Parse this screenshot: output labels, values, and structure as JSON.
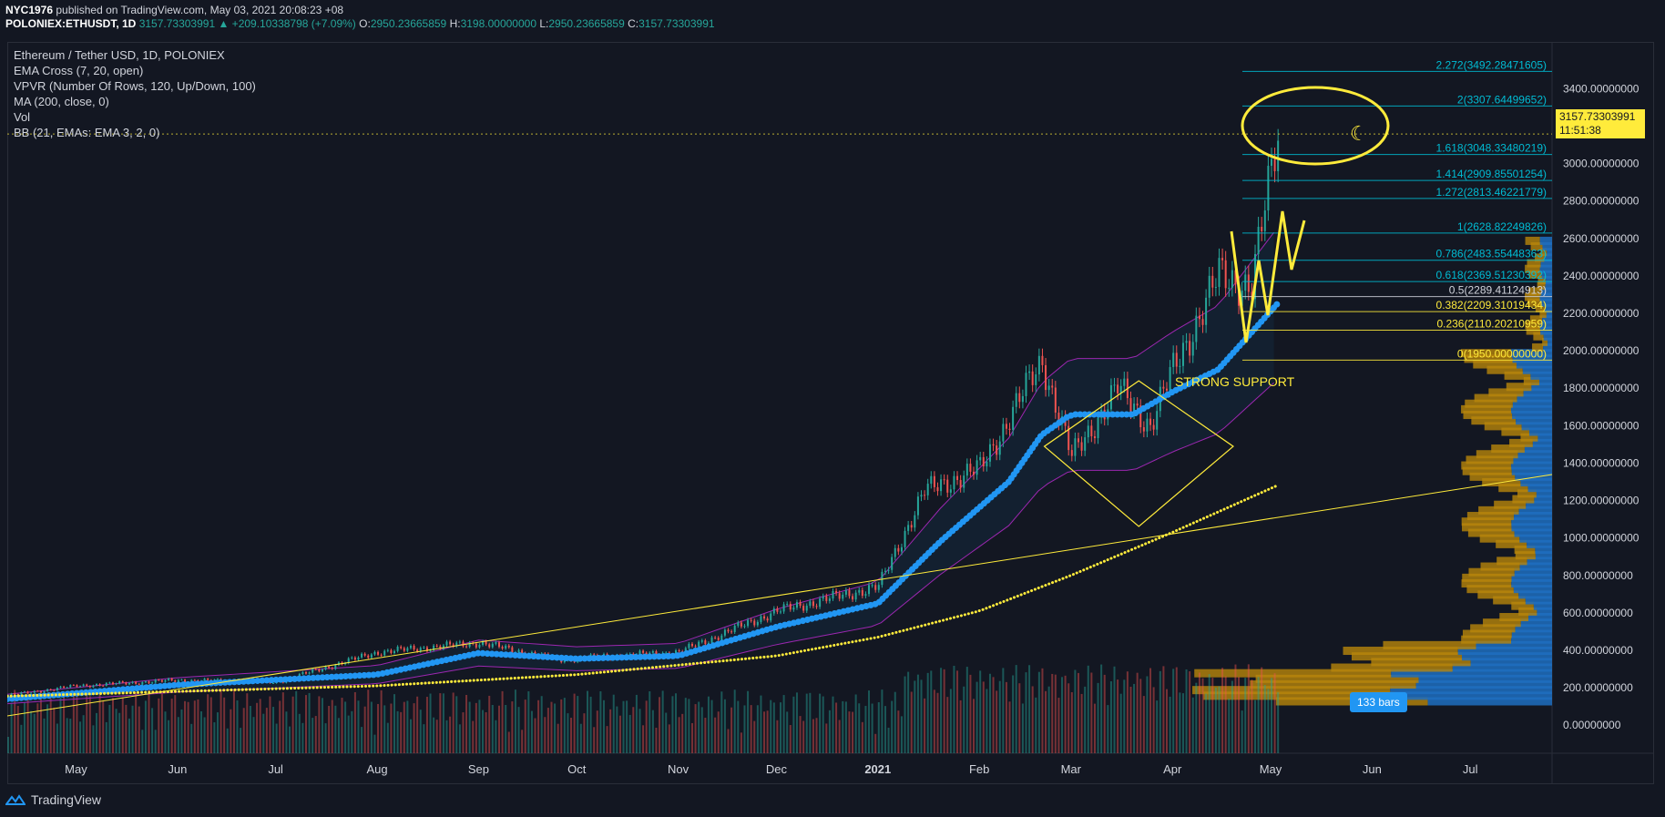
{
  "header": {
    "author": "NYC1976",
    "published_text": "published on TradingView.com, May 03, 2021 20:08:23 +08",
    "symbol": "POLONIEX:ETHUSDT, 1D",
    "price": "3157.73303991",
    "change": "▲ +209.10338798 (+7.09%)",
    "open_label": "O:",
    "open": "2950.23665859",
    "high_label": "H:",
    "high": "3198.00000000",
    "low_label": "L:",
    "low": "2950.23665859",
    "close_label": "C:",
    "close": "3157.73303991"
  },
  "legend": [
    "Ethereum / Tether USD, 1D, POLONIEX",
    "EMA Cross (7, 20, open)",
    "VPVR (Number Of Rows, 120, Up/Down, 100)",
    "MA (200, close, 0)",
    "Vol",
    "BB (21, EMAs: EMA 3, 2, 0)"
  ],
  "price_tag": {
    "price": "3157.73303991",
    "countdown": "11:51:38"
  },
  "bars_badge": "133 bars",
  "annotation_text": "STRONG SUPPORT",
  "footer": {
    "brand": "TradingView"
  },
  "colors": {
    "background": "#131722",
    "up": "#26a69a",
    "down": "#ef5350",
    "ma200": "#ffeb3b",
    "bb_basis": "#2196f3",
    "bb_band": "#9c27b0",
    "fib_line": "#00bcd4",
    "drawing": "#ffeb3b"
  },
  "chart_data": {
    "type": "line",
    "symbol": "POLONIEX:ETHUSDT",
    "ylim": [
      -150,
      3650
    ],
    "y_ticks": [
      0,
      200,
      400,
      600,
      800,
      1000,
      1200,
      1400,
      1600,
      1800,
      2000,
      2200,
      2400,
      2600,
      2800,
      3000,
      3200,
      3400
    ],
    "y_tick_labels": [
      "0.00000000",
      "200.00000000",
      "400.00000000",
      "600.00000000",
      "800.00000000",
      "1000.00000000",
      "1200.00000000",
      "1400.00000000",
      "1600.00000000",
      "1800.00000000",
      "2000.00000000",
      "2200.00000000",
      "2400.00000000",
      "2600.00000000",
      "2800.00000000",
      "3000.00000000",
      "3200.00000000",
      "3400.00000000"
    ],
    "x_tick_labels": [
      "May",
      "Jun",
      "Jul",
      "Aug",
      "Sep",
      "Oct",
      "Nov",
      "Dec",
      "2021",
      "Feb",
      "Mar",
      "Apr",
      "May",
      "Jun",
      "Jul"
    ],
    "x_tick_dates": [
      "2020-05-01",
      "2020-06-01",
      "2020-07-01",
      "2020-08-01",
      "2020-09-01",
      "2020-10-01",
      "2020-11-01",
      "2020-12-01",
      "2021-01-01",
      "2021-02-01",
      "2021-03-01",
      "2021-04-01",
      "2021-05-01",
      "2021-06-01",
      "2021-07-01"
    ],
    "x_start": "2020-04-10",
    "x_end": "2021-07-26",
    "series": [
      {
        "name": "ETHUSDT",
        "dates": [
          "2020-04-10",
          "2020-05-01",
          "2020-06-01",
          "2020-07-01",
          "2020-08-01",
          "2020-09-01",
          "2020-09-25",
          "2020-11-01",
          "2020-12-01",
          "2021-01-01",
          "2021-01-15",
          "2021-02-01",
          "2021-02-20",
          "2021-03-01",
          "2021-03-15",
          "2021-03-25",
          "2021-04-01",
          "2021-04-15",
          "2021-04-25",
          "2021-05-03"
        ],
        "values": [
          160,
          210,
          240,
          230,
          390,
          440,
          350,
          390,
          610,
          740,
          1250,
          1370,
          1950,
          1430,
          1800,
          1600,
          1900,
          2400,
          2350,
          3157.73
        ]
      },
      {
        "name": "BB basis",
        "dates": [
          "2020-04-10",
          "2020-06-01",
          "2020-08-01",
          "2020-09-01",
          "2020-10-01",
          "2020-11-01",
          "2020-12-01",
          "2021-01-01",
          "2021-01-20",
          "2021-02-10",
          "2021-02-20",
          "2021-03-01",
          "2021-03-20",
          "2021-04-01",
          "2021-04-15",
          "2021-05-03"
        ],
        "values": [
          140,
          215,
          270,
          385,
          355,
          370,
          525,
          650,
          980,
          1300,
          1550,
          1660,
          1660,
          1780,
          1900,
          2250
        ]
      },
      {
        "name": "MA (200, close, 0)",
        "dates": [
          "2020-04-10",
          "2020-06-01",
          "2020-08-01",
          "2020-10-01",
          "2020-12-01",
          "2021-01-01",
          "2021-02-01",
          "2021-03-01",
          "2021-04-01",
          "2021-05-03"
        ],
        "values": [
          155,
          180,
          210,
          270,
          370,
          470,
          610,
          800,
          1030,
          1280
        ]
      }
    ],
    "fib_levels": [
      {
        "ratio": "2.272",
        "value": "3492.28471605"
      },
      {
        "ratio": "2",
        "value": "3307.64499652"
      },
      {
        "ratio": "1.618",
        "value": "3048.33480219"
      },
      {
        "ratio": "1.414",
        "value": "2909.85501254"
      },
      {
        "ratio": "1.272",
        "value": "2813.46221779"
      },
      {
        "ratio": "1",
        "value": "2628.82249826"
      },
      {
        "ratio": "0.786",
        "value": "2483.55448363"
      },
      {
        "ratio": "0.618",
        "value": "2369.51230392"
      },
      {
        "ratio": "0.5",
        "value": "2289.41124913"
      },
      {
        "ratio": "0.382",
        "value": "2209.31019434"
      },
      {
        "ratio": "0.236",
        "value": "2110.20210959"
      },
      {
        "ratio": "0",
        "value": "1950.00000000"
      }
    ],
    "last_price": 3157.73
  }
}
